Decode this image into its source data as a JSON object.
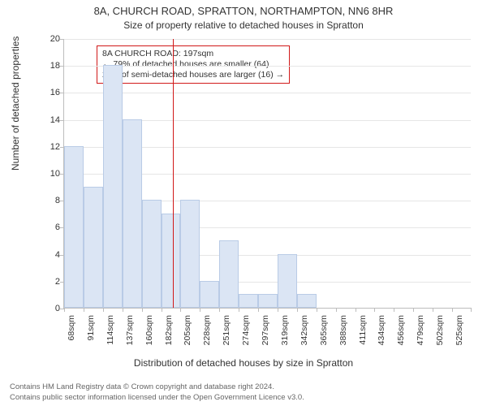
{
  "titles": {
    "main": "8A, CHURCH ROAD, SPRATTON, NORTHAMPTON, NN6 8HR",
    "sub": "Size of property relative to detached houses in Spratton"
  },
  "chart": {
    "type": "histogram",
    "y_axis_label": "Number of detached properties",
    "x_axis_label": "Distribution of detached houses by size in Spratton",
    "ylim": [
      0,
      20
    ],
    "ytick_step": 2,
    "yticks": [
      0,
      2,
      4,
      6,
      8,
      10,
      12,
      14,
      16,
      18,
      20
    ],
    "x_categories": [
      "68sqm",
      "91sqm",
      "114sqm",
      "137sqm",
      "160sqm",
      "182sqm",
      "205sqm",
      "228sqm",
      "251sqm",
      "274sqm",
      "297sqm",
      "319sqm",
      "342sqm",
      "365sqm",
      "388sqm",
      "411sqm",
      "434sqm",
      "456sqm",
      "479sqm",
      "502sqm",
      "525sqm"
    ],
    "values": [
      12,
      9,
      18,
      14,
      8,
      7,
      8,
      2,
      5,
      1,
      1,
      4,
      1,
      0,
      0,
      0,
      0,
      0,
      0,
      0,
      0
    ],
    "bar_color": "#dbe5f4",
    "bar_border_color": "#b9cbe6",
    "grid_color": "#e6e6e6",
    "axis_color": "#bdbdbd",
    "background_color": "#ffffff",
    "marker": {
      "position_sqm": 197,
      "color": "#d11919",
      "callout_lines": [
        "8A CHURCH ROAD: 197sqm",
        "← 79% of detached houses are smaller (64)",
        "20% of semi-detached houses are larger (16) →"
      ]
    },
    "label_fontsize": 12,
    "tick_fontsize": 11,
    "title_fontsize": 13
  },
  "footer": {
    "line1": "Contains HM Land Registry data © Crown copyright and database right 2024.",
    "line2": "Contains public sector information licensed under the Open Government Licence v3.0."
  }
}
